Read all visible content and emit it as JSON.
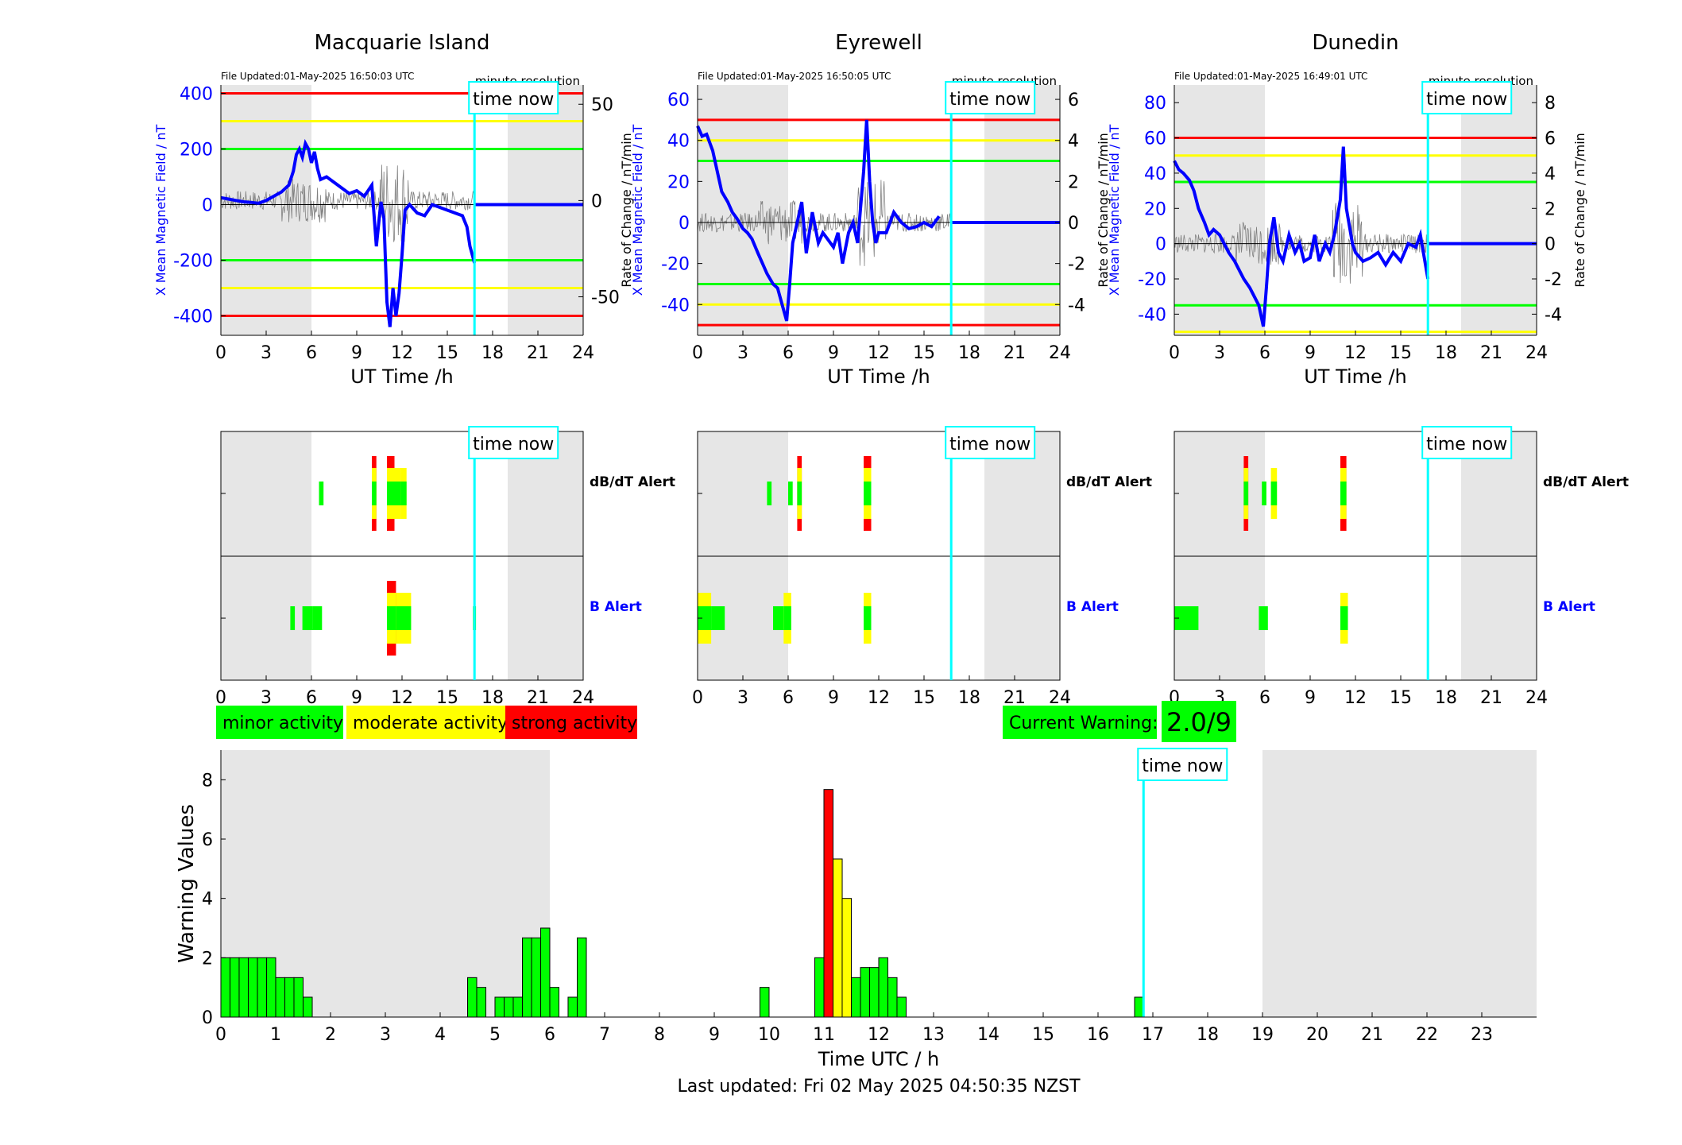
{
  "colors": {
    "red": "#ff0000",
    "yellow": "#ffff00",
    "green": "#00ff00",
    "cyan": "#00ffff",
    "blue": "#0000ff",
    "shade": "#e6e6e6"
  },
  "shared": {
    "time_now_label": "time now",
    "minute_resolution": "minute resolution",
    "ut_xlabel": "UT Time /h",
    "ylabel_left": "X Mean Magnetic Field / nT",
    "ylabel_right": "Rate of Change / nT/min",
    "alert_dbdt_label": "dB/dT Alert",
    "alert_b_label": "B Alert",
    "hour_ticks": [
      "0",
      "3",
      "6",
      "9",
      "12",
      "15",
      "18",
      "21",
      "24"
    ]
  },
  "stations": [
    {
      "name": "Macquarie Island",
      "file_updated": "File Updated:01-May-2025 16:50:03 UTC"
    },
    {
      "name": "Eyrewell",
      "file_updated": "File Updated:01-May-2025 16:50:05 UTC"
    },
    {
      "name": "Dunedin",
      "file_updated": "File Updated:01-May-2025 16:49:01 UTC"
    }
  ],
  "legend": {
    "minor": "minor activity",
    "moderate": "moderate activity",
    "strong": "strong activity"
  },
  "current_warning": {
    "label": "Current Warning:",
    "value": "2.0/9"
  },
  "footer": "Last updated: Fri 02 May 2025 04:50:35 NZST",
  "chart_data": [
    {
      "type": "line",
      "station": "Macquarie Island",
      "xlabel": "UT Time /h",
      "xlim": [
        0,
        24
      ],
      "ylabel": "X Mean Magnetic Field / nT",
      "ylim": [
        -470,
        430
      ],
      "y_ticks": [
        -400,
        -200,
        0,
        200,
        400
      ],
      "y2label": "Rate of Change / nT/min",
      "y2lim": [
        -70,
        60
      ],
      "y2_ticks": [
        -50,
        0,
        50
      ],
      "thresholds": {
        "red": [
          400,
          -400
        ],
        "yellow": [
          300,
          -300
        ],
        "green": [
          200,
          -200
        ]
      },
      "time_now": 16.8,
      "shaded": [
        [
          0,
          6
        ],
        [
          19,
          24
        ]
      ],
      "series": [
        {
          "x": [
            0,
            0.5,
            1,
            1.5,
            2,
            2.5,
            3,
            3.5,
            4,
            4.5,
            4.8,
            5,
            5.2,
            5.4,
            5.6,
            5.8,
            6,
            6.2,
            6.4,
            6.6,
            7,
            7.5,
            8,
            8.5,
            9,
            9.5,
            10,
            10.3,
            10.6,
            10.8,
            11,
            11.2,
            11.4,
            11.6,
            11.8,
            12,
            12.2,
            12.5,
            13,
            13.5,
            14,
            14.5,
            15,
            15.5,
            16,
            16.3,
            16.5,
            16.8
          ],
          "y": [
            25,
            20,
            15,
            10,
            8,
            5,
            15,
            30,
            45,
            70,
            120,
            180,
            200,
            170,
            220,
            200,
            150,
            190,
            130,
            90,
            100,
            80,
            60,
            40,
            50,
            30,
            70,
            -150,
            10,
            -50,
            -350,
            -440,
            -300,
            -400,
            -320,
            -180,
            -20,
            0,
            -30,
            -40,
            0,
            -10,
            -20,
            -30,
            -40,
            -80,
            -150,
            -210
          ]
        }
      ],
      "future_value": 0
    },
    {
      "type": "line",
      "station": "Eyrewell",
      "xlabel": "UT Time /h",
      "xlim": [
        0,
        24
      ],
      "ylabel": "X Mean Magnetic Field / nT",
      "ylim": [
        -55,
        67
      ],
      "y_ticks": [
        -40,
        -20,
        0,
        20,
        40,
        60
      ],
      "y2label": "Rate of Change / nT/min",
      "y2lim": [
        -5.5,
        6.7
      ],
      "y2_ticks": [
        -4,
        -2,
        0,
        2,
        4,
        6
      ],
      "thresholds": {
        "red": [
          50,
          -50
        ],
        "yellow": [
          40,
          -40
        ],
        "green": [
          30,
          -30
        ]
      },
      "time_now": 16.8,
      "shaded": [
        [
          0,
          6
        ],
        [
          19,
          24
        ]
      ],
      "series": [
        {
          "x": [
            0,
            0.3,
            0.6,
            1,
            1.3,
            1.6,
            2,
            2.3,
            2.6,
            3,
            3.3,
            3.6,
            4,
            4.3,
            4.6,
            5,
            5.3,
            5.6,
            5.9,
            6.1,
            6.3,
            6.6,
            6.9,
            7.2,
            7.6,
            8,
            8.3,
            8.6,
            9,
            9.3,
            9.6,
            10,
            10.3,
            10.6,
            11,
            11.2,
            11.4,
            11.6,
            11.8,
            12,
            12.5,
            13,
            13.5,
            14,
            14.5,
            15,
            15.5,
            16
          ],
          "y": [
            47,
            42,
            43,
            35,
            25,
            15,
            10,
            5,
            2,
            -3,
            -5,
            -8,
            -15,
            -20,
            -25,
            -30,
            -32,
            -40,
            -48,
            -30,
            -10,
            0,
            10,
            -15,
            5,
            -10,
            -5,
            -8,
            -12,
            -5,
            -20,
            -5,
            0,
            -10,
            25,
            50,
            20,
            0,
            -10,
            -5,
            -5,
            5,
            0,
            -3,
            -2,
            0,
            -2,
            3
          ]
        }
      ],
      "future_value": 0
    },
    {
      "type": "line",
      "station": "Dunedin",
      "xlabel": "UT Time /h",
      "xlim": [
        0,
        24
      ],
      "ylabel": "X Mean Magnetic Field / nT",
      "ylim": [
        -52,
        90
      ],
      "y_ticks": [
        -40,
        -20,
        0,
        20,
        40,
        60,
        80
      ],
      "y2label": "Rate of Change / nT/min",
      "y2lim": [
        -5.2,
        9.0
      ],
      "y2_ticks": [
        -4,
        -2,
        0,
        2,
        4,
        6,
        8
      ],
      "thresholds": {
        "red": [
          60
        ],
        "yellow": [
          50,
          -50
        ],
        "green": [
          35,
          -35
        ]
      },
      "time_now": 16.8,
      "shaded": [
        [
          0,
          6
        ],
        [
          19,
          24
        ]
      ],
      "series": [
        {
          "x": [
            0,
            0.3,
            0.6,
            1,
            1.3,
            1.6,
            2,
            2.3,
            2.6,
            3,
            3.3,
            3.6,
            4,
            4.3,
            4.6,
            5,
            5.3,
            5.6,
            5.9,
            6.1,
            6.3,
            6.6,
            6.9,
            7.2,
            7.6,
            8,
            8.3,
            8.6,
            9,
            9.3,
            9.6,
            10,
            10.3,
            10.6,
            11,
            11.2,
            11.4,
            11.6,
            11.8,
            12,
            12.5,
            13,
            13.5,
            14,
            14.5,
            15,
            15.5,
            16,
            16.3,
            16.8
          ],
          "y": [
            47,
            42,
            40,
            36,
            30,
            20,
            12,
            5,
            8,
            5,
            0,
            -5,
            -10,
            -15,
            -20,
            -25,
            -30,
            -35,
            -47,
            -25,
            0,
            15,
            -5,
            -10,
            5,
            -5,
            0,
            -10,
            -8,
            5,
            -10,
            0,
            -5,
            5,
            25,
            55,
            20,
            10,
            0,
            -5,
            -10,
            -8,
            -5,
            -12,
            -5,
            -10,
            0,
            -2,
            5,
            -20
          ]
        }
      ],
      "future_value": 0
    },
    {
      "type": "event_bars",
      "stations": [
        "Macquarie Island",
        "Eyrewell",
        "Dunedin"
      ],
      "xlim": [
        0,
        24
      ],
      "dbdt_alert": [
        [
          {
            "x0": 6.5,
            "x1": 6.8,
            "level": 1
          },
          {
            "x0": 10,
            "x1": 10.3,
            "level": 3
          },
          {
            "x0": 11,
            "x1": 11.5,
            "level": 3
          },
          {
            "x0": 11.5,
            "x1": 11.9,
            "level": 2
          },
          {
            "x0": 11.9,
            "x1": 12.3,
            "level": 2
          }
        ],
        [
          {
            "x0": 4.6,
            "x1": 4.9,
            "level": 1
          },
          {
            "x0": 6,
            "x1": 6.3,
            "level": 1
          },
          {
            "x0": 6.6,
            "x1": 6.9,
            "level": 3
          },
          {
            "x0": 11,
            "x1": 11.5,
            "level": 3
          }
        ],
        [
          {
            "x0": 4.6,
            "x1": 4.9,
            "level": 3
          },
          {
            "x0": 5.8,
            "x1": 6.1,
            "level": 1
          },
          {
            "x0": 6.4,
            "x1": 6.8,
            "level": 2
          },
          {
            "x0": 11,
            "x1": 11.4,
            "level": 3
          }
        ]
      ],
      "b_alert": [
        [
          {
            "x0": 4.6,
            "x1": 4.9,
            "level": 1
          },
          {
            "x0": 5.4,
            "x1": 6.1,
            "level": 1
          },
          {
            "x0": 6.1,
            "x1": 6.7,
            "level": 1
          },
          {
            "x0": 11,
            "x1": 11.6,
            "level": 3
          },
          {
            "x0": 11.6,
            "x1": 12.6,
            "level": 2
          },
          {
            "x0": 16.7,
            "x1": 16.9,
            "level": 1
          }
        ],
        [
          {
            "x0": 0,
            "x1": 0.9,
            "level": 2
          },
          {
            "x0": 0.9,
            "x1": 1.8,
            "level": 1
          },
          {
            "x0": 5,
            "x1": 5.7,
            "level": 1
          },
          {
            "x0": 5.7,
            "x1": 6.2,
            "level": 2
          },
          {
            "x0": 11,
            "x1": 11.5,
            "level": 2
          }
        ],
        [
          {
            "x0": 0,
            "x1": 1.6,
            "level": 1
          },
          {
            "x0": 5.6,
            "x1": 6.2,
            "level": 1
          },
          {
            "x0": 11,
            "x1": 11.5,
            "level": 2
          }
        ]
      ]
    },
    {
      "type": "bar",
      "xlabel": "Time UTC / h",
      "ylabel": "Warning Values",
      "xlim": [
        0,
        24
      ],
      "ylim": [
        0,
        9
      ],
      "x_ticks": [
        "0",
        "1",
        "2",
        "3",
        "4",
        "5",
        "6",
        "7",
        "8",
        "9",
        "10",
        "11",
        "12",
        "13",
        "14",
        "15",
        "16",
        "17",
        "18",
        "19",
        "20",
        "21",
        "22",
        "23"
      ],
      "y_ticks": [
        "0",
        "2",
        "4",
        "6",
        "8"
      ],
      "time_now": 16.83,
      "shaded": [
        [
          0,
          6
        ],
        [
          19,
          24
        ]
      ],
      "bars": [
        {
          "x": 0,
          "value": 2,
          "level": 1
        },
        {
          "x": 0.167,
          "value": 2,
          "level": 1
        },
        {
          "x": 0.333,
          "value": 2,
          "level": 1
        },
        {
          "x": 0.5,
          "value": 2,
          "level": 1
        },
        {
          "x": 0.667,
          "value": 2,
          "level": 1
        },
        {
          "x": 0.833,
          "value": 2,
          "level": 1
        },
        {
          "x": 1,
          "value": 1.33,
          "level": 1
        },
        {
          "x": 1.167,
          "value": 1.33,
          "level": 1
        },
        {
          "x": 1.333,
          "value": 1.33,
          "level": 1
        },
        {
          "x": 1.5,
          "value": 0.67,
          "level": 1
        },
        {
          "x": 4.5,
          "value": 1.33,
          "level": 1
        },
        {
          "x": 4.667,
          "value": 1,
          "level": 1
        },
        {
          "x": 5,
          "value": 0.67,
          "level": 1
        },
        {
          "x": 5.167,
          "value": 0.67,
          "level": 1
        },
        {
          "x": 5.333,
          "value": 0.67,
          "level": 1
        },
        {
          "x": 5.5,
          "value": 2.67,
          "level": 1
        },
        {
          "x": 5.667,
          "value": 2.67,
          "level": 1
        },
        {
          "x": 5.833,
          "value": 3,
          "level": 1
        },
        {
          "x": 6,
          "value": 1,
          "level": 1
        },
        {
          "x": 6.333,
          "value": 0.67,
          "level": 1
        },
        {
          "x": 6.5,
          "value": 2.67,
          "level": 1
        },
        {
          "x": 9.833,
          "value": 1,
          "level": 1
        },
        {
          "x": 10.833,
          "value": 2,
          "level": 1
        },
        {
          "x": 11,
          "value": 7.67,
          "level": 3
        },
        {
          "x": 11.167,
          "value": 5.33,
          "level": 2
        },
        {
          "x": 11.333,
          "value": 4,
          "level": 2
        },
        {
          "x": 11.5,
          "value": 1.33,
          "level": 1
        },
        {
          "x": 11.667,
          "value": 1.67,
          "level": 1
        },
        {
          "x": 11.833,
          "value": 1.67,
          "level": 1
        },
        {
          "x": 12,
          "value": 2,
          "level": 1
        },
        {
          "x": 12.167,
          "value": 1.33,
          "level": 1
        },
        {
          "x": 12.333,
          "value": 0.67,
          "level": 1
        },
        {
          "x": 16.667,
          "value": 0.67,
          "level": 1
        }
      ]
    }
  ]
}
